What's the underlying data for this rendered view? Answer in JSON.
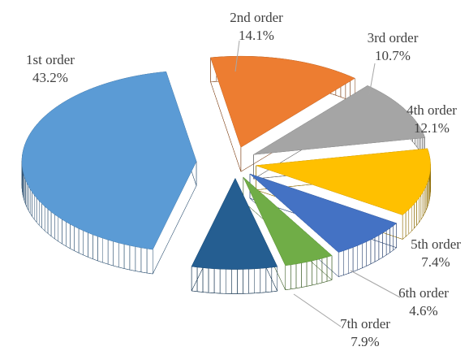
{
  "chart_data": {
    "type": "pie",
    "categories": [
      "1st order",
      "2nd order",
      "3rd order",
      "4th order",
      "5th order",
      "6th order",
      "7th order"
    ],
    "values": [
      43.2,
      14.1,
      10.7,
      12.1,
      7.4,
      4.6,
      7.9
    ],
    "value_labels": [
      "43.2%",
      "14.1%",
      "10.7%",
      "12.1%",
      "7.4%",
      "4.6%",
      "7.9%"
    ],
    "colors": [
      "#5b9bd5",
      "#ed7d31",
      "#a5a5a5",
      "#ffc000",
      "#4472c4",
      "#70ad47",
      "#255e91"
    ]
  }
}
